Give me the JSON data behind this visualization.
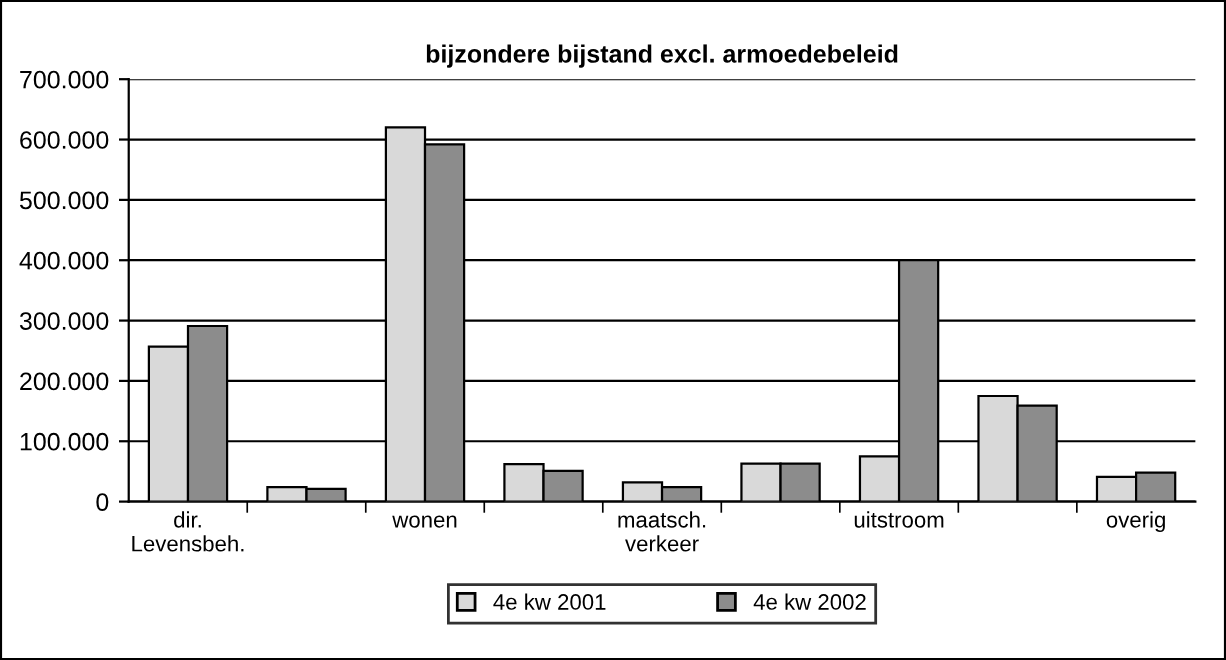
{
  "chart_data": {
    "type": "bar",
    "title": "bijzondere bijstand excl. armoedebeleid",
    "categories": [
      "dir.\nLevensbeh.",
      null,
      "wonen",
      null,
      "maatsch.\nverkeer",
      null,
      "uitstroom",
      null,
      "overig"
    ],
    "series": [
      {
        "name": "4e kw 2001",
        "color": "#d9d9d9",
        "values": [
          257000,
          24000,
          620000,
          62000,
          32000,
          63000,
          75000,
          175000,
          41000
        ]
      },
      {
        "name": "4e kw 2002",
        "color": "#8c8c8c",
        "values": [
          291000,
          21000,
          592000,
          51000,
          24000,
          63000,
          400000,
          159000,
          48000
        ]
      }
    ],
    "ylim": [
      0,
      700000
    ],
    "yticks": [
      0,
      {
        "value": 100000,
        "label": "100.000"
      },
      {
        "value": 200000,
        "label": "200.000"
      },
      {
        "value": 300000,
        "label": "300.000"
      },
      {
        "value": 400000,
        "label": "400.000"
      },
      {
        "value": 500000,
        "label": "500.000"
      },
      {
        "value": 600000,
        "label": "600.000"
      },
      {
        "value": 700000,
        "label": "700.000"
      }
    ],
    "grid": "y",
    "legend": "bottom"
  }
}
